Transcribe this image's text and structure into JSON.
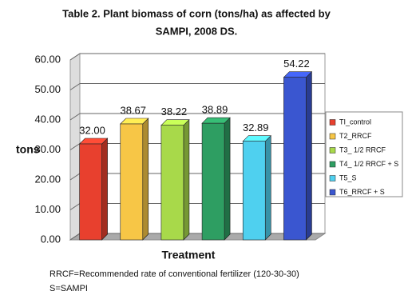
{
  "chart_data": {
    "type": "bar3d",
    "title": [
      "Table 2. Plant biomass of corn (tons/ha) as affected by",
      "SAMPI, 2008 DS."
    ],
    "y_label": "tons",
    "x_label": "Treatment",
    "notes": [
      "RRCF=Recommended rate of conventional fertilizer (120-30-30)",
      "S=SAMPI"
    ],
    "series": [
      {
        "name": "TI_control",
        "color": "#e8402e",
        "values": [
          32.0
        ],
        "value_labels": [
          "32.00"
        ]
      },
      {
        "name": "T2_RRCF",
        "color": "#f7c646",
        "values": [
          38.67
        ],
        "value_labels": [
          "38.67"
        ]
      },
      {
        "name": "T3_ 1/2 RRCF",
        "color": "#a8d94a",
        "values": [
          38.22
        ],
        "value_labels": [
          "38.22"
        ]
      },
      {
        "name": "T4_ 1/2 RRCF + S",
        "color": "#2e9e62",
        "values": [
          38.89
        ],
        "value_labels": [
          "38.89"
        ]
      },
      {
        "name": "T5_S",
        "color": "#4fd0ef",
        "values": [
          32.89
        ],
        "value_labels": [
          "32.89"
        ]
      },
      {
        "name": "T6_RRCF + S",
        "color": "#3a56d0",
        "values": [
          54.22
        ],
        "value_labels": [
          "54.22"
        ]
      }
    ],
    "ylim": [
      0,
      60
    ],
    "yticks": [
      {
        "value": 0,
        "label": "0.00"
      },
      {
        "value": 10,
        "label": "10.00"
      },
      {
        "value": 20,
        "label": "20.00"
      },
      {
        "value": 30,
        "label": "30.00"
      },
      {
        "value": 40,
        "label": "40.00"
      },
      {
        "value": 50,
        "label": "50.00"
      },
      {
        "value": 60,
        "label": "60.00"
      }
    ],
    "grid": true
  }
}
